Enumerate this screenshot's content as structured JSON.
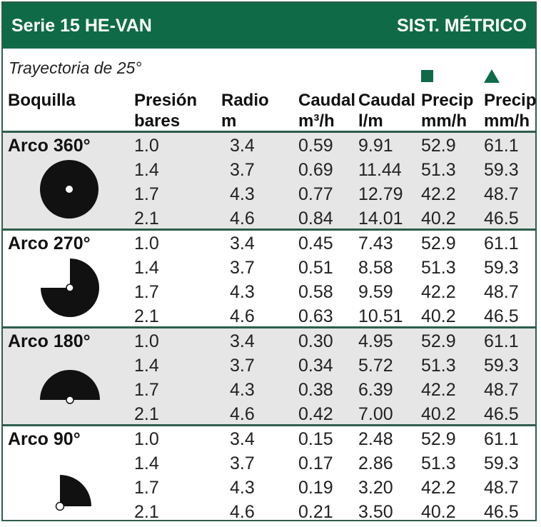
{
  "header": {
    "title": "Serie 15 HE-VAN",
    "system": "SIST. MÉTRICO"
  },
  "subtitle": "Trayectoria de 25°",
  "legend": {
    "square_icon": "square-icon",
    "triangle_icon": "triangle-icon",
    "color": "#0f6b47"
  },
  "columns": {
    "nozzle": "Boquilla",
    "pressure": {
      "line1": "Presión",
      "line2": "bares"
    },
    "radius": {
      "line1": "Radio",
      "line2": "m"
    },
    "flow_m3": {
      "line1": "Caudal",
      "line2": "m³/h"
    },
    "flow_lm": {
      "line1": "Caudal",
      "line2": "l/m"
    },
    "precip_square": {
      "line1": "Precip",
      "line2": "mm/h"
    },
    "precip_triangle": {
      "line1": "Precip",
      "line2": "mm/h"
    }
  },
  "groups": [
    {
      "arc": "Arco 360°",
      "icon": "arc-360-icon",
      "rows": [
        {
          "pressure": "1.0",
          "radius": "3.4",
          "flow_m3": "0.59",
          "flow_lm": "9.91",
          "precip_square": "52.9",
          "precip_triangle": "61.1"
        },
        {
          "pressure": "1.4",
          "radius": "3.7",
          "flow_m3": "0.69",
          "flow_lm": "11.44",
          "precip_square": "51.3",
          "precip_triangle": "59.3"
        },
        {
          "pressure": "1.7",
          "radius": "4.3",
          "flow_m3": "0.77",
          "flow_lm": "12.79",
          "precip_square": "42.2",
          "precip_triangle": "48.7"
        },
        {
          "pressure": "2.1",
          "radius": "4.6",
          "flow_m3": "0.84",
          "flow_lm": "14.01",
          "precip_square": "40.2",
          "precip_triangle": "46.5"
        }
      ]
    },
    {
      "arc": "Arco 270°",
      "icon": "arc-270-icon",
      "rows": [
        {
          "pressure": "1.0",
          "radius": "3.4",
          "flow_m3": "0.45",
          "flow_lm": "7.43",
          "precip_square": "52.9",
          "precip_triangle": "61.1"
        },
        {
          "pressure": "1.4",
          "radius": "3.7",
          "flow_m3": "0.51",
          "flow_lm": "8.58",
          "precip_square": "51.3",
          "precip_triangle": "59.3"
        },
        {
          "pressure": "1.7",
          "radius": "4.3",
          "flow_m3": "0.58",
          "flow_lm": "9.59",
          "precip_square": "42.2",
          "precip_triangle": "48.7"
        },
        {
          "pressure": "2.1",
          "radius": "4.6",
          "flow_m3": "0.63",
          "flow_lm": "10.51",
          "precip_square": "40.2",
          "precip_triangle": "46.5"
        }
      ]
    },
    {
      "arc": "Arco 180°",
      "icon": "arc-180-icon",
      "rows": [
        {
          "pressure": "1.0",
          "radius": "3.4",
          "flow_m3": "0.30",
          "flow_lm": "4.95",
          "precip_square": "52.9",
          "precip_triangle": "61.1"
        },
        {
          "pressure": "1.4",
          "radius": "3.7",
          "flow_m3": "0.34",
          "flow_lm": "5.72",
          "precip_square": "51.3",
          "precip_triangle": "59.3"
        },
        {
          "pressure": "1.7",
          "radius": "4.3",
          "flow_m3": "0.38",
          "flow_lm": "6.39",
          "precip_square": "42.2",
          "precip_triangle": "48.7"
        },
        {
          "pressure": "2.1",
          "radius": "4.6",
          "flow_m3": "0.42",
          "flow_lm": "7.00",
          "precip_square": "40.2",
          "precip_triangle": "46.5"
        }
      ]
    },
    {
      "arc": "Arco 90°",
      "icon": "arc-90-icon",
      "rows": [
        {
          "pressure": "1.0",
          "radius": "3.4",
          "flow_m3": "0.15",
          "flow_lm": "2.48",
          "precip_square": "52.9",
          "precip_triangle": "61.1"
        },
        {
          "pressure": "1.4",
          "radius": "3.7",
          "flow_m3": "0.17",
          "flow_lm": "2.86",
          "precip_square": "51.3",
          "precip_triangle": "59.3"
        },
        {
          "pressure": "1.7",
          "radius": "4.3",
          "flow_m3": "0.19",
          "flow_lm": "3.20",
          "precip_square": "42.2",
          "precip_triangle": "48.7"
        },
        {
          "pressure": "2.1",
          "radius": "4.6",
          "flow_m3": "0.21",
          "flow_lm": "3.50",
          "precip_square": "40.2",
          "precip_triangle": "46.5"
        }
      ]
    }
  ]
}
